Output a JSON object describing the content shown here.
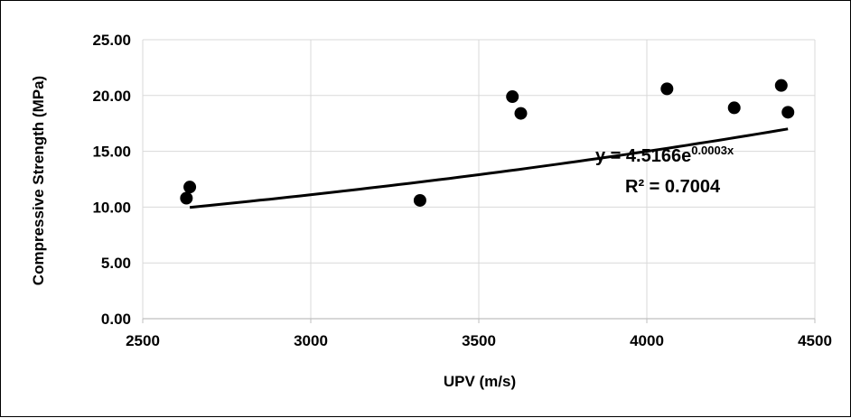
{
  "chart_data": {
    "type": "scatter",
    "xlabel": "UPV (m/s)",
    "ylabel": "Compressive Strength (MPa)",
    "xlim": [
      2500,
      4500
    ],
    "ylim": [
      0,
      25
    ],
    "x_ticks": [
      "2500",
      "3000",
      "3500",
      "4000",
      "4500"
    ],
    "y_ticks": [
      "0.00",
      "5.00",
      "10.00",
      "15.00",
      "20.00",
      "25.00"
    ],
    "grid": true,
    "legend": "none",
    "series": [
      {
        "points": [
          {
            "x": 2630,
            "y": 10.8
          },
          {
            "x": 2640,
            "y": 11.8
          },
          {
            "x": 3325,
            "y": 10.6
          },
          {
            "x": 3600,
            "y": 19.9
          },
          {
            "x": 3625,
            "y": 18.4
          },
          {
            "x": 4060,
            "y": 20.6
          },
          {
            "x": 4260,
            "y": 18.9
          },
          {
            "x": 4400,
            "y": 20.9
          },
          {
            "x": 4420,
            "y": 18.5
          }
        ]
      }
    ],
    "trendline": {
      "type": "exponential",
      "a": 4.5166,
      "b": 0.0003,
      "x_range": [
        2640,
        4420
      ],
      "equation_prefix": "y = 4.5166e",
      "equation_exponent": "0.0003x",
      "r2_text": "R² = 0.7004"
    },
    "colors": {
      "marker": "#000000",
      "trendline": "#000000",
      "grid": "#d9d9d9"
    }
  }
}
